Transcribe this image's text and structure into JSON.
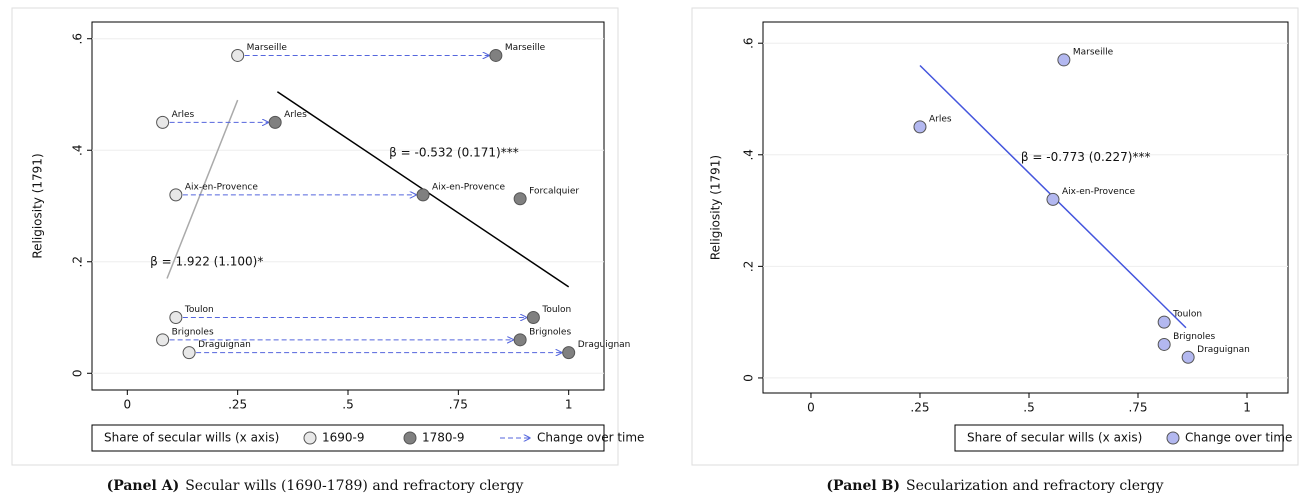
{
  "chart_data": [
    {
      "type": "scatter",
      "caption_tag": "(Panel A)",
      "caption": "Secular wills (1690-1789) and refractory clergy",
      "y_label": "Religiosity (1791)",
      "legend_title": "Share of secular wills (x axis)",
      "arrow_legend": "Change over time",
      "xlim": [
        -0.08,
        1.08
      ],
      "ylim": [
        -0.03,
        0.63
      ],
      "xticks": [
        0,
        {
          "value": 0.25,
          "label": ".25"
        },
        {
          "value": 0.5,
          "label": ".5"
        },
        {
          "value": 0.75,
          "label": ".75"
        },
        1
      ],
      "yticks": [
        0,
        {
          "value": 0.2,
          "label": ".2"
        },
        {
          "value": 0.4,
          "label": ".4"
        },
        {
          "value": 0.6,
          "label": ".6"
        }
      ],
      "grid": true,
      "series": [
        {
          "name": "1690-9",
          "color": "#e8e8e8",
          "labels": [
            "Marseille",
            "Arles",
            "Aix-en-Provence",
            null,
            "Toulon",
            "Brignoles",
            "Draguignan"
          ],
          "x": [
            0.25,
            0.08,
            0.11,
            null,
            0.11,
            0.08,
            0.14
          ],
          "values": [
            0.57,
            0.45,
            0.32,
            null,
            0.1,
            0.06,
            0.037
          ]
        },
        {
          "name": "1780-9",
          "color": "#808080",
          "labels": [
            "Marseille",
            "Arles",
            "Aix-en-Provence",
            "Forcalquier",
            "Toulon",
            "Brignoles",
            "Draguignan"
          ],
          "x": [
            0.835,
            0.335,
            0.67,
            0.89,
            0.92,
            0.89,
            1.0
          ],
          "values": [
            0.57,
            0.45,
            0.32,
            0.313,
            0.1,
            0.06,
            0.037
          ]
        }
      ],
      "fits": [
        {
          "label": "β = 1.922 (1.100)*",
          "color": "#aaaaaa",
          "x": [
            0.09,
            0.25
          ],
          "y": [
            0.17,
            0.49
          ]
        },
        {
          "label": "β = -0.532 (0.171)***",
          "color": "#000000",
          "x": [
            0.34,
            1.0
          ],
          "y": [
            0.505,
            0.155
          ]
        }
      ]
    },
    {
      "type": "scatter",
      "caption_tag": "(Panel B)",
      "caption": "Secularization and refractory clergy",
      "y_label": "Religiosity (1791)",
      "legend_title": "Share of secular wills (x axis)",
      "xlim": [
        -0.11,
        1.094
      ],
      "ylim": [
        -0.027,
        0.638
      ],
      "xticks": [
        0,
        {
          "value": 0.25,
          "label": ".25"
        },
        {
          "value": 0.5,
          "label": ".5"
        },
        {
          "value": 0.75,
          "label": ".75"
        },
        1
      ],
      "yticks": [
        0,
        {
          "value": 0.2,
          "label": ".2"
        },
        {
          "value": 0.4,
          "label": ".4"
        },
        {
          "value": 0.6,
          "label": ".6"
        }
      ],
      "grid": true,
      "series": [
        {
          "name": "Change over time",
          "color": "#b3b8f0",
          "labels": [
            "Marseille",
            "Arles",
            "Aix-en-Provence",
            "Toulon",
            "Brignoles",
            "Draguignan"
          ],
          "x": [
            0.58,
            0.25,
            0.555,
            0.81,
            0.81,
            0.865
          ],
          "values": [
            0.57,
            0.45,
            0.32,
            0.1,
            0.06,
            0.037
          ]
        }
      ],
      "fits": [
        {
          "label": "β = -0.773 (0.227)***",
          "color": "#4455dd",
          "x": [
            0.25,
            0.86
          ],
          "y": [
            0.56,
            0.09
          ]
        }
      ]
    }
  ]
}
